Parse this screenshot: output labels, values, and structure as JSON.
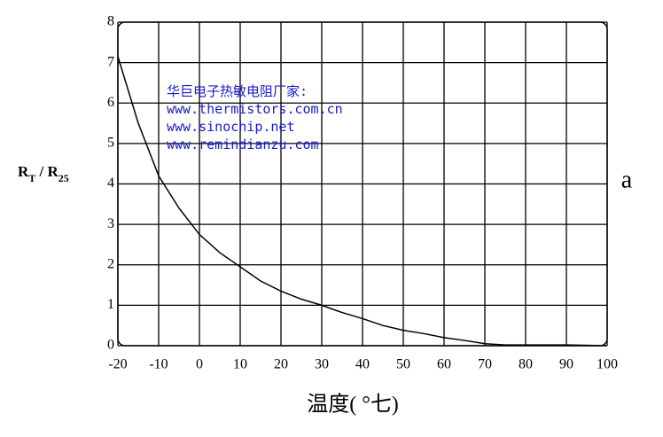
{
  "chart_data": {
    "type": "line",
    "ylabel": [
      "R",
      "T",
      " / R",
      "25"
    ],
    "xlabel": "温度( °七)",
    "side_label": "a",
    "annotations": [
      "华巨电子热敏电阻厂家:",
      "www.thermistors.com.cn",
      "www.sinochip.net",
      "www.remindianzu.com"
    ],
    "annotation_color": "#1a1acc",
    "x": [
      -20,
      -15,
      -10,
      -5,
      0,
      5,
      10,
      15,
      20,
      25,
      30,
      35,
      40,
      45,
      50,
      55,
      60,
      65,
      70,
      75,
      80,
      90,
      100
    ],
    "series": [
      {
        "color": "#000000",
        "values": [
          7.15,
          5.5,
          4.2,
          3.4,
          2.75,
          2.3,
          1.95,
          1.6,
          1.35,
          1.15,
          1.0,
          0.82,
          0.67,
          0.5,
          0.38,
          0.3,
          0.2,
          0.13,
          0.05,
          0.02,
          0.02,
          0.02,
          0
        ]
      }
    ],
    "xlim": [
      -20,
      100
    ],
    "xticks": [
      -20,
      -10,
      0,
      10,
      20,
      30,
      40,
      50,
      60,
      70,
      80,
      90,
      100
    ],
    "ylim": [
      0,
      8
    ],
    "yticks": [
      0,
      1,
      2,
      3,
      4,
      5,
      6,
      7,
      8
    ],
    "grid": true
  }
}
